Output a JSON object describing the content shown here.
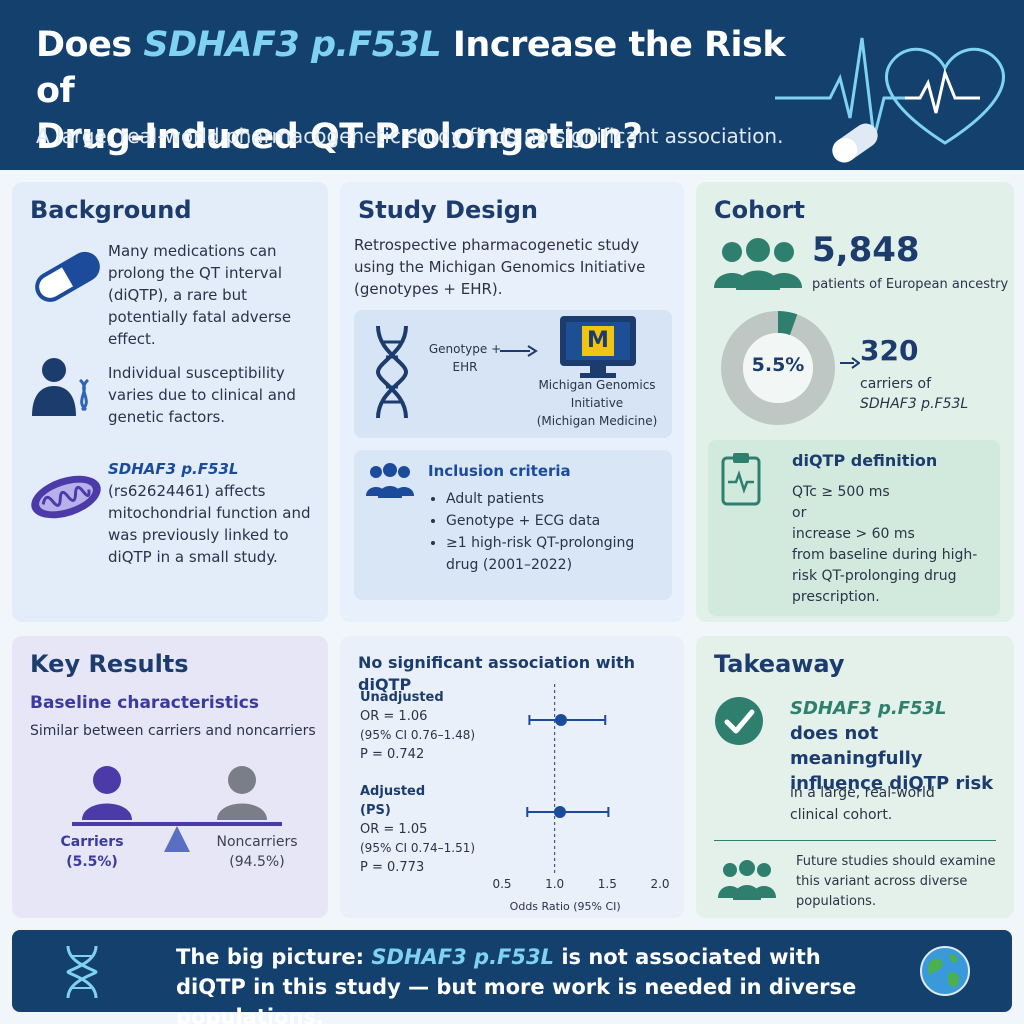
{
  "header": {
    "title_pre": "Does ",
    "title_gene": "SDHAF3 p.F53L",
    "title_mid": " Increase the Risk of",
    "title_line2": "Drug-Induced QT Prolongation?",
    "subtitle": "A large, real-world pharmacogenetic study finds no significant association."
  },
  "background": {
    "heading": "Background",
    "p1": "Many medications can prolong the QT interval (diQTP), a rare but potentially fatal adverse effect.",
    "p2": "Individual susceptibility varies due to clinical and genetic factors.",
    "p3_gene": "SDHAF3 p.F53L",
    "p3": "(rs62624461) affects mitochondrial function and was previously linked to diQTP in a small study."
  },
  "study_design": {
    "heading": "Study Design",
    "intro": "Retrospective pharmacogenetic study using the Michigan Genomics Initiative (genotypes + EHR).",
    "flow_left": "Genotype + EHR",
    "flow_right_1": "Michigan Genomics Initiative",
    "flow_right_2": "(Michigan Medicine)",
    "logo_letter": "M",
    "inclusion_title": "Inclusion criteria",
    "inclusion_items": [
      "Adult patients",
      "Genotype + ECG data",
      "≥1 high-risk QT-prolonging drug (2001–2022)"
    ]
  },
  "cohort": {
    "heading": "Cohort",
    "total": "5,848",
    "total_label": "patients of European ancestry",
    "percent_label": "5.5%",
    "carrier_fraction": 0.055,
    "carriers": "320",
    "carriers_label": "carriers of",
    "carriers_gene": "SDHAF3 p.F53L",
    "def_title": "diQTP definition",
    "def_l1": "QTc ≥ 500 ms",
    "def_l2": "or",
    "def_l3": "increase > 60 ms",
    "def_l4": "from baseline during high-risk QT-prolonging drug prescription."
  },
  "key_results": {
    "heading": "Key Results",
    "sub": "Baseline characteristics",
    "desc": "Similar between carriers and noncarriers",
    "carriers": "Carriers",
    "carriers_pct": "(5.5%)",
    "noncarriers": "Noncarriers",
    "noncarriers_pct": "(94.5%)"
  },
  "forest": {
    "heading": "No significant association with diQTP",
    "unadj_title": "Unadjusted",
    "unadj_or": "OR = 1.06",
    "unadj_ci": "(95% CI 0.76–1.48)",
    "unadj_p": "P = 0.742",
    "adj_title": "Adjusted",
    "adj_sub": "(PS)",
    "adj_or": "OR = 1.05",
    "adj_ci": "(95% CI 0.74–1.51)",
    "adj_p": "P = 0.773",
    "xlabel": "Odds Ratio (95% CI)",
    "ticks": [
      "0.5",
      "1.0",
      "1.5",
      "2.0"
    ]
  },
  "chart_data": {
    "type": "scatter",
    "title": "No significant association with diQTP",
    "xlabel": "Odds Ratio (95% CI)",
    "xlim": [
      0.5,
      2.0
    ],
    "reference_line": 1.0,
    "points": [
      {
        "label": "Unadjusted",
        "or": 1.06,
        "ci_low": 0.76,
        "ci_high": 1.48,
        "p": 0.742
      },
      {
        "label": "Adjusted (PS)",
        "or": 1.05,
        "ci_low": 0.74,
        "ci_high": 1.51,
        "p": 0.773
      }
    ]
  },
  "takeaway": {
    "heading": "Takeaway",
    "gene": "SDHAF3  p.F53L",
    "main": "does not meaningfully influence diQTP risk",
    "sub": "in a large, real-world clinical cohort.",
    "future": "Future studies should examine this variant across diverse populations."
  },
  "footer": {
    "pre": "The big picture: ",
    "gene": "SDHAF3 p.F53L",
    "post": " is not associated with diQTP in this study — but more work is needed in diverse populations."
  },
  "colors": {
    "navy": "#14406e",
    "accent_cyan": "#7fd2f2",
    "blue": "#1b4b9a",
    "teal": "#2e7f6e",
    "purple": "#4b3aa8"
  }
}
